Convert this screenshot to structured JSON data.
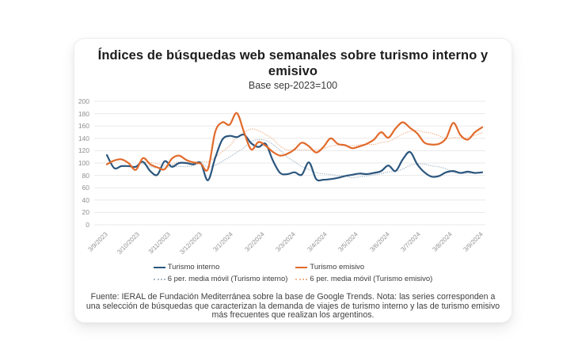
{
  "card": {
    "title": "Índices de búsquedas web semanales sobre turismo interno y emisivo",
    "subtitle": "Base sep-2023=100",
    "footer": "Fuente: IERAL de Fundación Mediterránea sobre la base de Google Trends. Nota: las series corresponden a una selección de búsquedas que caracterizan la demanda de viajes de turismo interno y las de turismo emisivo más frecuentes que realizan los argentinos."
  },
  "chart_data": {
    "type": "line",
    "title": "Índices de búsquedas web semanales sobre turismo interno y emisivo",
    "subtitle": "Base sep-2023=100",
    "xlabel": "",
    "ylabel": "",
    "ylim": [
      0,
      200
    ],
    "ytick_step": 20,
    "grid": true,
    "legend_position": "bottom",
    "x_frequency": "weekly",
    "categories": [
      "3/9/2023",
      "3/10/2023",
      "3/11/2023",
      "3/12/2023",
      "3/1/2024",
      "3/2/2024",
      "3/3/2024",
      "3/4/2024",
      "3/5/2024",
      "3/6/2024",
      "3/7/2024",
      "3/8/2024",
      "3/9/2024"
    ],
    "colors": {
      "turismo_interno": "#2B567E",
      "turismo_emisivo": "#E16A2B",
      "media_movil_interno": "#A9BBC9",
      "media_movil_emisivo": "#EFB691",
      "gridline": "#E9E9E9",
      "tick_text": "#8F8F8F"
    },
    "series": [
      {
        "name": "Turismo interno",
        "color": "#2B567E",
        "line": "solid",
        "values": [
          113,
          92,
          95,
          95,
          94,
          102,
          87,
          81,
          103,
          94,
          100,
          100,
          98,
          100,
          72,
          108,
          138,
          144,
          142,
          146,
          132,
          126,
          131,
          104,
          84,
          82,
          85,
          81,
          101,
          74,
          73,
          74,
          76,
          79,
          81,
          83,
          82,
          84,
          87,
          96,
          87,
          106,
          118,
          98,
          85,
          78,
          79,
          85,
          87,
          84,
          86,
          84,
          85
        ]
      },
      {
        "name": "Turismo emisivo",
        "color": "#E16A2B",
        "line": "solid",
        "values": [
          98,
          104,
          106,
          100,
          89,
          108,
          98,
          93,
          90,
          107,
          112,
          105,
          101,
          99,
          90,
          150,
          166,
          162,
          181,
          150,
          122,
          134,
          128,
          118,
          112,
          115,
          122,
          133,
          127,
          117,
          126,
          140,
          131,
          129,
          124,
          127,
          131,
          138,
          150,
          141,
          156,
          166,
          157,
          148,
          133,
          130,
          131,
          140,
          165,
          145,
          138,
          150,
          158
        ]
      },
      {
        "name": "6 per. media móvil (Turismo interno)",
        "color": "#A9BBC9",
        "line": "dotted",
        "moving_average_of": "Turismo interno",
        "window": 6
      },
      {
        "name": "6 per. media móvil (Turismo emisivo)",
        "color": "#EFB691",
        "line": "dotted",
        "moving_average_of": "Turismo emisivo",
        "window": 6
      }
    ]
  }
}
